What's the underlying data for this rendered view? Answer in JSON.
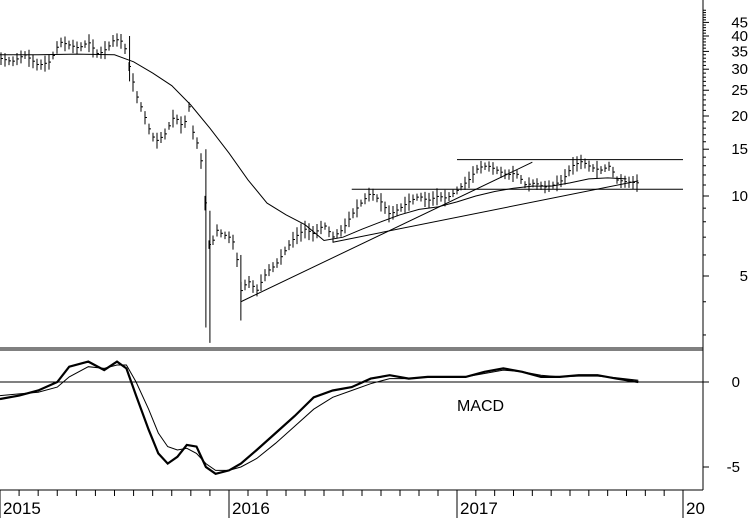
{
  "chart_data": [
    {
      "type": "bar",
      "style": "ohlc",
      "panel": "price",
      "y_scale": "log",
      "ylim": [
        2.5,
        50
      ],
      "y_tick_labels": [
        "45",
        "40",
        "35",
        "30",
        "25",
        "20",
        "15",
        "10",
        "5"
      ],
      "y_tick_values": [
        45,
        40,
        35,
        30,
        25,
        20,
        15,
        10,
        5
      ],
      "x_labels": [
        "2015",
        "2016",
        "2017",
        "20"
      ],
      "x_label_values": [
        "2015-01",
        "2016-01",
        "2017-01",
        "2018-01"
      ],
      "price_path": [
        [
          "2015-01-01",
          33
        ],
        [
          "2015-01-20",
          32
        ],
        [
          "2015-02-10",
          34
        ],
        [
          "2015-03-01",
          31
        ],
        [
          "2015-03-20",
          32
        ],
        [
          "2015-04-05",
          38
        ],
        [
          "2015-04-20",
          37
        ],
        [
          "2015-05-05",
          36
        ],
        [
          "2015-05-20",
          38
        ],
        [
          "2015-06-05",
          34
        ],
        [
          "2015-06-20",
          36
        ],
        [
          "2015-07-01",
          39
        ],
        [
          "2015-07-15",
          38
        ],
        [
          "2015-07-25",
          30
        ],
        [
          "2015-08-05",
          24
        ],
        [
          "2015-08-15",
          21
        ],
        [
          "2015-08-25",
          18
        ],
        [
          "2015-09-05",
          16
        ],
        [
          "2015-09-20",
          17
        ],
        [
          "2015-10-05",
          20
        ],
        [
          "2015-10-20",
          18
        ],
        [
          "2015-10-28",
          22
        ],
        [
          "2015-11-05",
          17
        ],
        [
          "2015-11-15",
          15
        ],
        [
          "2015-11-25",
          8.5
        ],
        [
          "2015-12-01",
          6.0
        ],
        [
          "2015-12-10",
          7.5
        ],
        [
          "2015-12-20",
          7.2
        ],
        [
          "2016-01-01",
          7.0
        ],
        [
          "2016-01-10",
          6.6
        ],
        [
          "2016-01-20",
          4.4
        ],
        [
          "2016-02-01",
          4.8
        ],
        [
          "2016-02-15",
          4.4
        ],
        [
          "2016-03-01",
          5.2
        ],
        [
          "2016-03-15",
          5.5
        ],
        [
          "2016-04-01",
          6.3
        ],
        [
          "2016-04-15",
          7.0
        ],
        [
          "2016-05-01",
          7.5
        ],
        [
          "2016-05-15",
          7.2
        ],
        [
          "2016-06-01",
          7.8
        ],
        [
          "2016-06-15",
          7.0
        ],
        [
          "2016-07-01",
          7.5
        ],
        [
          "2016-07-15",
          8.5
        ],
        [
          "2016-08-01",
          9.5
        ],
        [
          "2016-08-15",
          10.3
        ],
        [
          "2016-09-01",
          9.5
        ],
        [
          "2016-09-15",
          8.5
        ],
        [
          "2016-10-01",
          9.0
        ],
        [
          "2016-10-15",
          9.5
        ],
        [
          "2016-11-01",
          10.0
        ],
        [
          "2016-11-15",
          9.6
        ],
        [
          "2016-12-01",
          10.0
        ],
        [
          "2016-12-15",
          9.8
        ],
        [
          "2017-01-01",
          10.5
        ],
        [
          "2017-01-20",
          11.5
        ],
        [
          "2017-02-05",
          12.8
        ],
        [
          "2017-02-20",
          13.0
        ],
        [
          "2017-03-05",
          12.5
        ],
        [
          "2017-03-20",
          12.0
        ],
        [
          "2017-04-05",
          12.2
        ],
        [
          "2017-04-20",
          11.0
        ],
        [
          "2017-05-05",
          11.2
        ],
        [
          "2017-05-20",
          10.8
        ],
        [
          "2017-06-05",
          11.0
        ],
        [
          "2017-06-20",
          11.5
        ],
        [
          "2017-07-05",
          13.0
        ],
        [
          "2017-07-20",
          13.5
        ],
        [
          "2017-08-05",
          12.8
        ],
        [
          "2017-08-20",
          12.5
        ],
        [
          "2017-09-05",
          13.0
        ],
        [
          "2017-09-15",
          11.5
        ],
        [
          "2017-10-01",
          11.3
        ],
        [
          "2017-10-20",
          11.2
        ]
      ],
      "moving_average": [
        [
          "2015-01-01",
          34.0
        ],
        [
          "2015-03-01",
          34.0
        ],
        [
          "2015-05-01",
          34.2
        ],
        [
          "2015-07-01",
          34.0
        ],
        [
          "2015-08-01",
          32.0
        ],
        [
          "2015-09-01",
          29.0
        ],
        [
          "2015-10-01",
          26.0
        ],
        [
          "2015-11-01",
          22.0
        ],
        [
          "2015-12-01",
          18.0
        ],
        [
          "2016-01-01",
          14.5
        ],
        [
          "2016-02-01",
          11.5
        ],
        [
          "2016-03-01",
          9.4
        ],
        [
          "2016-04-01",
          8.5
        ],
        [
          "2016-05-01",
          7.8
        ],
        [
          "2016-06-01",
          6.8
        ],
        [
          "2016-07-01",
          7.0
        ],
        [
          "2016-08-01",
          7.5
        ],
        [
          "2016-09-01",
          8.0
        ],
        [
          "2016-10-01",
          8.5
        ],
        [
          "2016-11-01",
          8.9
        ],
        [
          "2016-12-01",
          9.1
        ],
        [
          "2017-01-01",
          9.5
        ],
        [
          "2017-02-01",
          10.0
        ],
        [
          "2017-03-01",
          10.4
        ],
        [
          "2017-04-01",
          10.7
        ],
        [
          "2017-05-01",
          10.9
        ],
        [
          "2017-06-01",
          10.9
        ],
        [
          "2017-07-01",
          11.2
        ],
        [
          "2017-08-01",
          11.6
        ],
        [
          "2017-09-01",
          11.7
        ],
        [
          "2017-10-01",
          11.6
        ]
      ],
      "trendlines": [
        {
          "from": [
            "2016-01-20",
            4.0
          ],
          "to": [
            "2017-05-01",
            13.4
          ]
        },
        {
          "from": [
            "2016-07-15",
            10.6
          ],
          "to": [
            "2018-01-01",
            10.6
          ]
        },
        {
          "from": [
            "2017-01-01",
            13.7
          ],
          "to": [
            "2018-01-01",
            13.7
          ]
        },
        {
          "from": [
            "2016-06-15",
            6.7
          ],
          "to": [
            "2017-10-20",
            11.4
          ]
        }
      ]
    },
    {
      "type": "line",
      "panel": "indicator",
      "annotation": "MACD",
      "ylim": [
        -6,
        3.2
      ],
      "y_tick_labels": [
        "0",
        "-5"
      ],
      "y_tick_values": [
        0,
        -5
      ],
      "reference_lines": [
        0,
        2.0
      ],
      "series": [
        {
          "values": [
            [
              "2015-01-01",
              -1.0
            ],
            [
              "2015-02-01",
              -0.8
            ],
            [
              "2015-03-01",
              -0.5
            ],
            [
              "2015-04-01",
              0.0
            ],
            [
              "2015-04-20",
              0.9
            ],
            [
              "2015-05-20",
              1.2
            ],
            [
              "2015-06-15",
              0.7
            ],
            [
              "2015-07-05",
              1.2
            ],
            [
              "2015-07-20",
              0.8
            ],
            [
              "2015-08-05",
              -0.8
            ],
            [
              "2015-08-25",
              -2.8
            ],
            [
              "2015-09-10",
              -4.2
            ],
            [
              "2015-09-25",
              -4.8
            ],
            [
              "2015-10-10",
              -4.4
            ],
            [
              "2015-10-25",
              -3.7
            ],
            [
              "2015-11-10",
              -3.8
            ],
            [
              "2015-11-25",
              -5.0
            ],
            [
              "2015-12-10",
              -5.4
            ],
            [
              "2016-01-01",
              -5.2
            ],
            [
              "2016-01-20",
              -4.8
            ],
            [
              "2016-02-15",
              -4.0
            ],
            [
              "2016-03-15",
              -3.0
            ],
            [
              "2016-04-15",
              -2.0
            ],
            [
              "2016-05-15",
              -0.9
            ],
            [
              "2016-06-15",
              -0.5
            ],
            [
              "2016-07-15",
              -0.3
            ],
            [
              "2016-08-15",
              0.2
            ],
            [
              "2016-09-15",
              0.4
            ],
            [
              "2016-10-15",
              0.2
            ],
            [
              "2016-11-15",
              0.3
            ],
            [
              "2016-12-15",
              0.3
            ],
            [
              "2017-01-15",
              0.3
            ],
            [
              "2017-02-15",
              0.6
            ],
            [
              "2017-03-15",
              0.8
            ],
            [
              "2017-04-15",
              0.6
            ],
            [
              "2017-05-15",
              0.3
            ],
            [
              "2017-06-15",
              0.3
            ],
            [
              "2017-07-15",
              0.4
            ],
            [
              "2017-08-15",
              0.4
            ],
            [
              "2017-09-15",
              0.2
            ],
            [
              "2017-10-20",
              0.0
            ]
          ]
        },
        {
          "values": [
            [
              "2015-01-01",
              -0.8
            ],
            [
              "2015-02-01",
              -0.7
            ],
            [
              "2015-03-01",
              -0.6
            ],
            [
              "2015-04-01",
              -0.3
            ],
            [
              "2015-04-20",
              0.3
            ],
            [
              "2015-05-20",
              0.9
            ],
            [
              "2015-06-15",
              0.8
            ],
            [
              "2015-07-05",
              1.0
            ],
            [
              "2015-07-20",
              1.0
            ],
            [
              "2015-08-05",
              0.0
            ],
            [
              "2015-08-25",
              -1.6
            ],
            [
              "2015-09-10",
              -3.0
            ],
            [
              "2015-09-25",
              -3.8
            ],
            [
              "2015-10-10",
              -4.0
            ],
            [
              "2015-10-25",
              -3.9
            ],
            [
              "2015-11-10",
              -4.2
            ],
            [
              "2015-11-25",
              -4.8
            ],
            [
              "2015-12-10",
              -5.2
            ],
            [
              "2016-01-01",
              -5.2
            ],
            [
              "2016-01-20",
              -5.0
            ],
            [
              "2016-02-15",
              -4.5
            ],
            [
              "2016-03-15",
              -3.6
            ],
            [
              "2016-04-15",
              -2.6
            ],
            [
              "2016-05-15",
              -1.6
            ],
            [
              "2016-06-15",
              -0.9
            ],
            [
              "2016-07-15",
              -0.5
            ],
            [
              "2016-08-15",
              -0.1
            ],
            [
              "2016-09-15",
              0.2
            ],
            [
              "2016-10-15",
              0.2
            ],
            [
              "2016-11-15",
              0.3
            ],
            [
              "2016-12-15",
              0.3
            ],
            [
              "2017-01-15",
              0.3
            ],
            [
              "2017-02-15",
              0.5
            ],
            [
              "2017-03-15",
              0.7
            ],
            [
              "2017-04-15",
              0.6
            ],
            [
              "2017-05-15",
              0.4
            ],
            [
              "2017-06-15",
              0.3
            ],
            [
              "2017-07-15",
              0.35
            ],
            [
              "2017-08-15",
              0.35
            ],
            [
              "2017-09-15",
              0.25
            ],
            [
              "2017-10-20",
              0.1
            ]
          ]
        }
      ]
    }
  ]
}
